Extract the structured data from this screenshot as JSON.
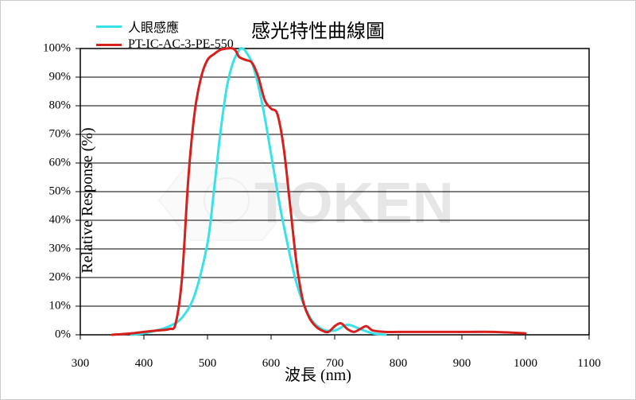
{
  "chart": {
    "type": "line",
    "title": "感光特性曲線圖",
    "xlabel": "波長 (nm)",
    "ylabel": "Relative Response (%)",
    "title_fontsize": 24,
    "label_fontsize": 20,
    "tick_fontsize": 15,
    "background_color": "#ffffff",
    "border_color": "#000000",
    "grid_color": "#000000",
    "grid_linewidth": 1,
    "xlim": [
      300,
      1100
    ],
    "ylim": [
      0,
      100
    ],
    "xticks": [
      300,
      400,
      500,
      600,
      700,
      800,
      900,
      1000,
      1100
    ],
    "yticks": [
      0,
      10,
      20,
      30,
      40,
      50,
      60,
      70,
      80,
      90,
      100
    ],
    "ytick_labels": [
      "0%",
      "10%",
      "20%",
      "30%",
      "40%",
      "50%",
      "60%",
      "70%",
      "80%",
      "90%",
      "100%"
    ],
    "legend": {
      "position": "top-left",
      "items": [
        {
          "label": "人眼感應",
          "color": "#39e2e8",
          "linewidth": 3
        },
        {
          "label": "PT-IC-AC-3-PE-550",
          "color": "#d6201d",
          "linewidth": 3
        }
      ]
    },
    "series": [
      {
        "name": "人眼感應",
        "color": "#39e2e8",
        "linewidth": 3,
        "x": [
          380,
          400,
          420,
          440,
          460,
          480,
          500,
          510,
          520,
          530,
          540,
          550,
          555,
          560,
          570,
          580,
          590,
          600,
          610,
          620,
          640,
          660,
          680,
          700,
          720,
          740,
          760,
          780
        ],
        "y": [
          0,
          0.5,
          1.5,
          3,
          6,
          14,
          32,
          50,
          70,
          86,
          95,
          99.5,
          100,
          99,
          95,
          87,
          76,
          63,
          50,
          38,
          18,
          6.5,
          2,
          1.5,
          3.5,
          2,
          0.5,
          0
        ]
      },
      {
        "name": "PT-IC-AC-3-PE-550",
        "color": "#d6201d",
        "linewidth": 3,
        "x": [
          350,
          380,
          400,
          420,
          440,
          450,
          460,
          470,
          480,
          490,
          500,
          510,
          520,
          530,
          540,
          545,
          550,
          560,
          570,
          580,
          590,
          600,
          610,
          620,
          630,
          640,
          650,
          660,
          670,
          680,
          690,
          700,
          710,
          720,
          730,
          740,
          750,
          760,
          780,
          800,
          850,
          900,
          950,
          1000
        ],
        "y": [
          0,
          0.5,
          1,
          1.5,
          2,
          4,
          20,
          55,
          78,
          90,
          96,
          98,
          99.5,
          100,
          100,
          99,
          97,
          96,
          95,
          90,
          82,
          79,
          77,
          65,
          45,
          25,
          12,
          6,
          3,
          1.5,
          1,
          3,
          4,
          2,
          1,
          2,
          3,
          1.5,
          1,
          1,
          1,
          1,
          1,
          0.5
        ]
      }
    ],
    "watermark": {
      "text": "TOKEN",
      "color": "#888888",
      "opacity": 0.18,
      "fontsize": 72
    }
  }
}
